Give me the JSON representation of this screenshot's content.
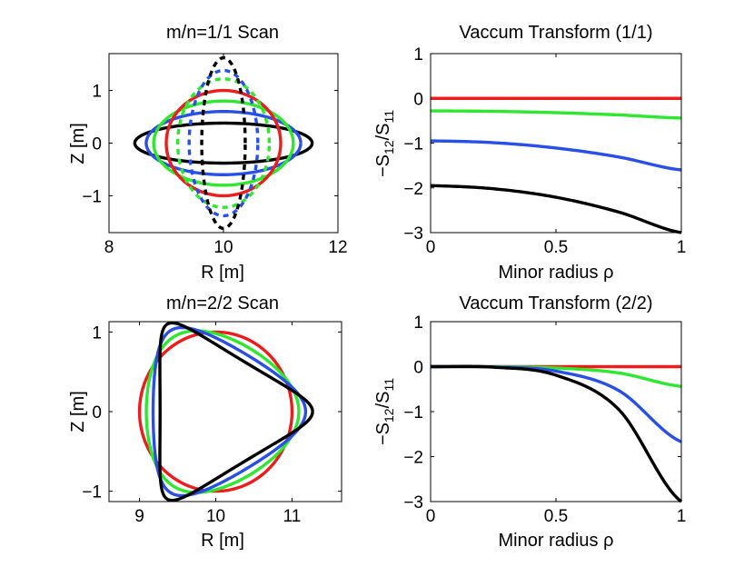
{
  "chart_data": [
    {
      "type": "line",
      "title": "m/n=1/1 Scan",
      "xlabel": "R [m]",
      "ylabel": "Z [m]",
      "xlim": [
        8,
        12
      ],
      "ylim": [
        -1.7,
        1.7
      ],
      "xticks": [
        8,
        10,
        12
      ],
      "yticks": [
        -1,
        0,
        1
      ],
      "xtick_labels": [
        "8",
        "10",
        "12"
      ],
      "ytick_labels": [
        "−1",
        "0",
        "1"
      ],
      "grid": false,
      "legend": "none",
      "series": [
        {
          "shape": "ellipse",
          "center": [
            10,
            0
          ],
          "semi_axes": [
            1.55,
            0.38
          ],
          "color": "#000000",
          "style": "solid"
        },
        {
          "shape": "ellipse",
          "center": [
            10,
            0
          ],
          "semi_axes": [
            1.35,
            0.6
          ],
          "color": "#2850e6",
          "style": "solid"
        },
        {
          "shape": "ellipse",
          "center": [
            10,
            0
          ],
          "semi_axes": [
            1.22,
            0.8
          ],
          "color": "#2ee82e",
          "style": "solid"
        },
        {
          "shape": "ellipse",
          "center": [
            10,
            0
          ],
          "semi_axes": [
            1.0,
            1.0
          ],
          "color": "#ee1c1c",
          "style": "solid"
        },
        {
          "shape": "ellipse",
          "center": [
            10,
            0
          ],
          "semi_axes": [
            0.8,
            1.22
          ],
          "color": "#2ee82e",
          "style": "dashed"
        },
        {
          "shape": "ellipse",
          "center": [
            10,
            0
          ],
          "semi_axes": [
            0.6,
            1.38
          ],
          "color": "#2850e6",
          "style": "dashed"
        },
        {
          "shape": "ellipse",
          "center": [
            10,
            0
          ],
          "semi_axes": [
            0.38,
            1.62
          ],
          "color": "#000000",
          "style": "dashed"
        }
      ]
    },
    {
      "type": "line",
      "title": "Vaccum Transform (1/1)",
      "xlabel": "Minor radius ρ",
      "ylabel": "−S12/S11",
      "xlim": [
        0,
        1
      ],
      "ylim": [
        -3,
        1
      ],
      "xticks": [
        0,
        0.5,
        1
      ],
      "yticks": [
        -3,
        -2,
        -1,
        0,
        1
      ],
      "xtick_labels": [
        "0",
        "0.5",
        "1"
      ],
      "ytick_labels": [
        "−3",
        "−2",
        "−1",
        "0",
        "1"
      ],
      "grid": false,
      "legend": "none",
      "series": [
        {
          "color": "#ee1c1c",
          "x": [
            0,
            0.25,
            0.5,
            0.75,
            1
          ],
          "y": [
            0,
            0,
            0,
            0,
            0
          ]
        },
        {
          "color": "#2ee82e",
          "x": [
            0,
            0.25,
            0.5,
            0.75,
            1
          ],
          "y": [
            -0.28,
            -0.29,
            -0.32,
            -0.37,
            -0.44
          ]
        },
        {
          "color": "#2850e6",
          "x": [
            0,
            0.25,
            0.5,
            0.75,
            1
          ],
          "y": [
            -0.95,
            -0.99,
            -1.11,
            -1.31,
            -1.6
          ]
        },
        {
          "color": "#000000",
          "x": [
            0,
            0.25,
            0.5,
            0.75,
            1
          ],
          "y": [
            -1.95,
            -2.02,
            -2.21,
            -2.54,
            -3.0
          ]
        }
      ]
    },
    {
      "type": "line",
      "title": "m/n=2/2 Scan",
      "xlabel": "R [m]",
      "ylabel": "Z [m]",
      "xlim": [
        8.6,
        11.65
      ],
      "ylim": [
        -1.13,
        1.13
      ],
      "xticks": [
        9,
        10,
        11
      ],
      "yticks": [
        -1,
        0,
        1
      ],
      "xtick_labels": [
        "9",
        "10",
        "11"
      ],
      "ytick_labels": [
        "−1",
        "0",
        "1"
      ],
      "grid": false,
      "legend": "none",
      "series": [
        {
          "shape": "triangularity",
          "center": [
            10,
            0
          ],
          "delta": 0.0,
          "color": "#ee1c1c"
        },
        {
          "shape": "triangularity",
          "center": [
            10,
            0
          ],
          "delta": 0.33,
          "color": "#2ee82e"
        },
        {
          "shape": "triangularity",
          "center": [
            10,
            0
          ],
          "delta": 0.66,
          "color": "#2850e6"
        },
        {
          "shape": "triangularity",
          "center": [
            10,
            0
          ],
          "delta": 1.0,
          "color": "#000000"
        }
      ]
    },
    {
      "type": "line",
      "title": "Vaccum Transform (2/2)",
      "xlabel": "Minor radius ρ",
      "ylabel": "−S12/S11",
      "xlim": [
        0,
        1
      ],
      "ylim": [
        -3,
        1
      ],
      "xticks": [
        0,
        0.5,
        1
      ],
      "yticks": [
        -3,
        -2,
        -1,
        0,
        1
      ],
      "xtick_labels": [
        "0",
        "0.5",
        "1"
      ],
      "ytick_labels": [
        "−3",
        "−2",
        "−1",
        "0",
        "1"
      ],
      "grid": false,
      "legend": "none",
      "series": [
        {
          "color": "#ee1c1c",
          "x": [
            0,
            0.25,
            0.5,
            0.75,
            1
          ],
          "y": [
            0,
            0,
            0,
            0,
            0
          ]
        },
        {
          "color": "#2ee82e",
          "x": [
            0,
            0.25,
            0.5,
            0.75,
            1
          ],
          "y": [
            0,
            -0.002,
            -0.03,
            -0.14,
            -0.44
          ]
        },
        {
          "color": "#2850e6",
          "x": [
            0,
            0.25,
            0.5,
            0.75,
            1
          ],
          "y": [
            0,
            -0.007,
            -0.1,
            -0.53,
            -1.67
          ]
        },
        {
          "color": "#000000",
          "x": [
            0,
            0.25,
            0.5,
            0.75,
            1
          ],
          "y": [
            0,
            -0.012,
            -0.19,
            -0.95,
            -3.0
          ]
        }
      ]
    }
  ]
}
